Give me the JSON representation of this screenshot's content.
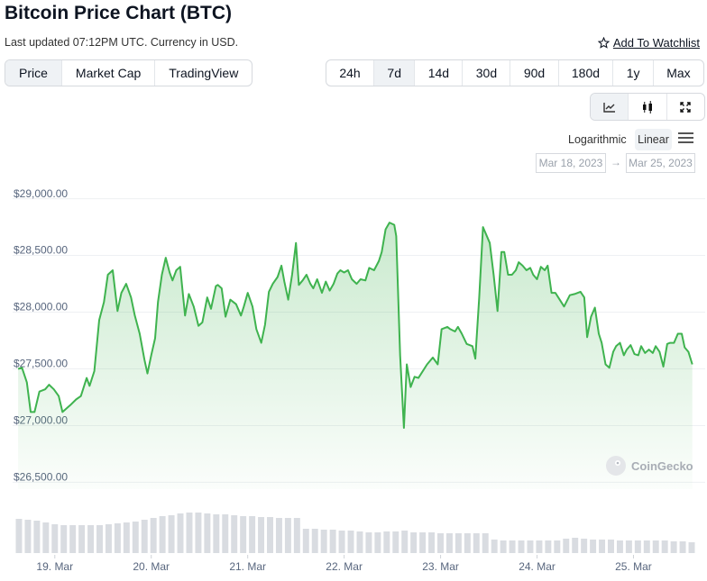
{
  "header": {
    "title": "Bitcoin Price Chart (BTC)",
    "subtitle": "Last updated 07:12PM UTC. Currency in USD.",
    "watchlist": "Add To Watchlist"
  },
  "tabs": [
    "Price",
    "Market Cap",
    "TradingView"
  ],
  "ranges": [
    "24h",
    "7d",
    "14d",
    "30d",
    "90d",
    "180d",
    "1y",
    "Max"
  ],
  "scale": {
    "log": "Logarithmic",
    "linear": "Linear"
  },
  "date_range": {
    "from": "Mar 18, 2023",
    "arrow": "→",
    "to": "Mar 25, 2023"
  },
  "watermark": "CoinGecko",
  "chart_data": [
    {
      "type": "area",
      "color": "#3fb34f",
      "grid": true,
      "xlim": [
        18.6,
        25.65
      ],
      "xticks": [
        {
          "value": 19,
          "label": "19. Mar"
        },
        {
          "value": 20,
          "label": "20. Mar"
        },
        {
          "value": 21,
          "label": "21. Mar"
        },
        {
          "value": 22,
          "label": "22. Mar"
        },
        {
          "value": 23,
          "label": "23. Mar"
        },
        {
          "value": 24,
          "label": "24. Mar"
        },
        {
          "value": 25,
          "label": "25. Mar"
        }
      ],
      "ylim": [
        26400,
        29100
      ],
      "yticks": [
        {
          "value": 26500,
          "label": "$26,500.00"
        },
        {
          "value": 27000,
          "label": "$27,000.00"
        },
        {
          "value": 27500,
          "label": "$27,500.00"
        },
        {
          "value": 28000,
          "label": "$28,000.00"
        },
        {
          "value": 28500,
          "label": "$28,500.00"
        },
        {
          "value": 29000,
          "label": "$29,000.00"
        }
      ],
      "x": [
        18.62,
        18.66,
        18.71,
        18.75,
        18.79,
        18.84,
        18.9,
        18.94,
        18.99,
        19.04,
        19.08,
        19.16,
        19.22,
        19.27,
        19.33,
        19.36,
        19.41,
        19.46,
        19.51,
        19.55,
        19.6,
        19.65,
        19.69,
        19.74,
        19.79,
        19.83,
        19.88,
        19.93,
        19.96,
        20.0,
        20.04,
        20.07,
        20.11,
        20.15,
        20.19,
        20.22,
        20.26,
        20.3,
        20.35,
        20.39,
        20.44,
        20.49,
        20.53,
        20.58,
        20.62,
        20.67,
        20.69,
        20.73,
        20.77,
        20.82,
        20.88,
        20.93,
        20.96,
        21.0,
        21.05,
        21.09,
        21.14,
        21.18,
        21.22,
        21.26,
        21.31,
        21.35,
        21.38,
        21.42,
        21.46,
        21.5,
        21.53,
        21.57,
        21.61,
        21.65,
        21.68,
        21.72,
        21.77,
        21.81,
        21.85,
        21.89,
        21.93,
        21.96,
        22.0,
        22.04,
        22.08,
        22.13,
        22.17,
        22.22,
        22.26,
        22.31,
        22.36,
        22.39,
        22.43,
        22.47,
        22.52,
        22.54,
        22.58,
        22.62,
        22.65,
        22.69,
        22.73,
        22.77,
        22.8,
        22.86,
        22.92,
        22.97,
        23.01,
        23.07,
        23.1,
        23.15,
        23.18,
        23.22,
        23.27,
        23.33,
        23.36,
        23.4,
        23.44,
        23.48,
        23.51,
        23.55,
        23.59,
        23.63,
        23.66,
        23.7,
        23.74,
        23.78,
        23.81,
        23.85,
        23.89,
        23.93,
        23.96,
        24.0,
        24.04,
        24.08,
        24.11,
        24.15,
        24.19,
        24.22,
        24.28,
        24.34,
        24.39,
        24.45,
        24.49,
        24.52,
        24.56,
        24.6,
        24.64,
        24.67,
        24.71,
        24.75,
        24.79,
        24.82,
        24.86,
        24.9,
        24.93,
        24.97,
        25.01,
        25.05,
        25.08,
        25.12,
        25.16,
        25.2,
        25.23,
        25.27,
        25.31,
        25.35,
        25.38,
        25.42,
        25.46,
        25.5,
        25.53,
        25.57,
        25.61
      ],
      "values": [
        27460,
        27470,
        27340,
        27080,
        27080,
        27260,
        27280,
        27320,
        27280,
        27220,
        27080,
        27140,
        27190,
        27220,
        27380,
        27310,
        27440,
        27890,
        28050,
        28290,
        28330,
        27970,
        28130,
        28210,
        28090,
        27930,
        27770,
        27540,
        27420,
        27580,
        27730,
        28050,
        28290,
        28440,
        28310,
        28240,
        28330,
        28360,
        27930,
        28120,
        28010,
        27840,
        27870,
        28090,
        27990,
        28190,
        28200,
        28170,
        27920,
        28070,
        28030,
        27930,
        28010,
        28130,
        28010,
        27810,
        27690,
        27850,
        28140,
        28210,
        28270,
        28370,
        28230,
        28070,
        28290,
        28570,
        28200,
        28240,
        28290,
        28210,
        28170,
        28250,
        28130,
        28230,
        28150,
        28210,
        28300,
        28330,
        28310,
        28330,
        28250,
        28210,
        28250,
        28240,
        28350,
        28330,
        28410,
        28490,
        28690,
        28750,
        28730,
        28630,
        27580,
        26940,
        27500,
        27300,
        27390,
        27380,
        27420,
        27500,
        27560,
        27500,
        27810,
        27830,
        27810,
        27790,
        27830,
        27770,
        27680,
        27660,
        27550,
        28090,
        28710,
        28630,
        28570,
        28290,
        27970,
        28490,
        28490,
        28290,
        28290,
        28330,
        28400,
        28370,
        28330,
        28350,
        28290,
        28250,
        28360,
        28330,
        28370,
        28130,
        28130,
        28090,
        28010,
        28110,
        28120,
        28140,
        28090,
        27740,
        27920,
        28000,
        27770,
        27690,
        27500,
        27470,
        27610,
        27660,
        27690,
        27580,
        27630,
        27670,
        27590,
        27580,
        27660,
        27600,
        27630,
        27600,
        27660,
        27610,
        27480,
        27680,
        27690,
        27690,
        27770,
        27770,
        27650,
        27610,
        27500
      ]
    },
    {
      "type": "bar",
      "color": "#d9dce1",
      "ylim": [
        0,
        100
      ],
      "values": [
        76,
        74,
        72,
        68,
        64,
        62,
        62,
        62,
        62,
        62,
        64,
        66,
        68,
        70,
        74,
        78,
        82,
        84,
        88,
        90,
        90,
        88,
        86,
        86,
        84,
        82,
        82,
        80,
        80,
        78,
        78,
        78,
        54,
        54,
        52,
        52,
        50,
        50,
        48,
        46,
        46,
        48,
        48,
        50,
        46,
        46,
        46,
        44,
        44,
        44,
        44,
        44,
        44,
        30,
        28,
        28,
        28,
        28,
        28,
        28,
        28,
        32,
        34,
        32,
        30,
        30,
        30,
        28,
        28,
        28,
        28,
        28,
        28,
        26,
        26,
        24
      ]
    }
  ]
}
